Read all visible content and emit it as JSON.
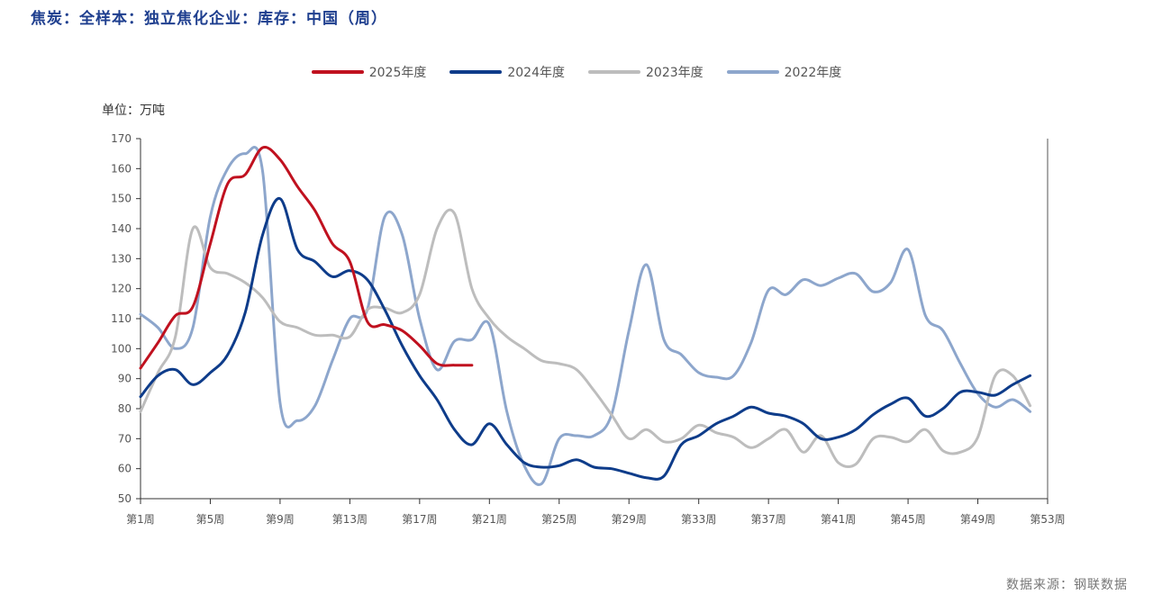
{
  "title": "焦炭：全样本：独立焦化企业：库存：中国（周）",
  "unit_label": "单位：万吨",
  "source_label": "数据来源：钢联数据",
  "chart_data": {
    "type": "line",
    "title": "焦炭：全样本：独立焦化企业：库存：中国（周）",
    "xlabel": "",
    "ylabel": "单位：万吨",
    "xlim": [
      1,
      53
    ],
    "ylim": [
      50,
      170
    ],
    "y_ticks": [
      50,
      60,
      70,
      80,
      90,
      100,
      110,
      120,
      130,
      140,
      150,
      160,
      170
    ],
    "x_ticks": [
      1,
      5,
      9,
      13,
      17,
      21,
      25,
      29,
      33,
      37,
      41,
      45,
      49,
      53
    ],
    "x_tick_labels": [
      "第1周",
      "第5周",
      "第9周",
      "第13周",
      "第17周",
      "第21周",
      "第25周",
      "第29周",
      "第33周",
      "第37周",
      "第41周",
      "第45周",
      "第49周",
      "第53周"
    ],
    "grid": false,
    "legend_position": "top-center",
    "series": [
      {
        "name": "2025年度",
        "color": "#c0111f",
        "x": [
          1,
          2,
          3,
          4,
          5,
          6,
          7,
          8,
          9,
          10,
          11,
          12,
          13,
          14,
          15,
          16,
          17,
          18,
          19,
          20
        ],
        "values": [
          93.5,
          102,
          111,
          114,
          135,
          155,
          158,
          167,
          163,
          154,
          146,
          135,
          129,
          109,
          108,
          106,
          101,
          95,
          94.5,
          94.5
        ]
      },
      {
        "name": "2024年度",
        "color": "#0e3c8a",
        "x": [
          1,
          2,
          3,
          4,
          5,
          6,
          7,
          8,
          9,
          10,
          11,
          12,
          13,
          14,
          15,
          16,
          17,
          18,
          19,
          20,
          21,
          22,
          23,
          24,
          25,
          26,
          27,
          28,
          29,
          30,
          31,
          32,
          33,
          34,
          35,
          36,
          37,
          38,
          39,
          40,
          41,
          42,
          43,
          44,
          45,
          46,
          47,
          48,
          49,
          50,
          51,
          52
        ],
        "values": [
          84,
          91,
          93,
          88,
          92,
          98,
          112,
          138,
          150,
          133,
          129,
          124,
          126,
          123,
          113,
          101,
          91,
          83,
          73,
          68,
          75,
          68,
          62,
          60.5,
          61,
          63,
          60.5,
          60,
          58.5,
          57,
          57.5,
          68,
          71,
          75,
          77.5,
          80.5,
          78.5,
          77.5,
          75,
          70,
          70.5,
          73,
          78,
          81.5,
          83.5,
          77.5,
          80,
          85.5,
          85.5,
          84.5,
          88,
          91
        ]
      },
      {
        "name": "2023年度",
        "color": "#bdbdbd",
        "x": [
          1,
          2,
          3,
          4,
          5,
          6,
          7,
          8,
          9,
          10,
          11,
          12,
          13,
          14,
          15,
          16,
          17,
          18,
          19,
          20,
          21,
          22,
          23,
          24,
          25,
          26,
          27,
          28,
          29,
          30,
          31,
          32,
          33,
          34,
          35,
          36,
          37,
          38,
          39,
          40,
          41,
          42,
          43,
          44,
          45,
          46,
          47,
          48,
          49,
          50,
          51,
          52
        ],
        "values": [
          79,
          92,
          104,
          140,
          127,
          125,
          122,
          117,
          109,
          107,
          104.5,
          104.5,
          104,
          113,
          113.5,
          112,
          118,
          140,
          145,
          120,
          110,
          104,
          100,
          96,
          95,
          93,
          86,
          78,
          70,
          73,
          69,
          70,
          74.5,
          72,
          70.5,
          67,
          70,
          73,
          65.5,
          71,
          62,
          61.5,
          70,
          70.5,
          69,
          73,
          66,
          65.5,
          70.5,
          91,
          91,
          81
        ]
      },
      {
        "name": "2022年度",
        "color": "#8da6cc",
        "x": [
          1,
          2,
          3,
          4,
          5,
          6,
          7,
          8,
          9,
          10,
          11,
          12,
          13,
          14,
          15,
          16,
          17,
          18,
          19,
          20,
          21,
          22,
          23,
          24,
          25,
          26,
          27,
          28,
          29,
          30,
          31,
          32,
          33,
          34,
          35,
          36,
          37,
          38,
          39,
          40,
          41,
          42,
          43,
          44,
          45,
          46,
          47,
          48,
          49,
          50,
          51,
          52
        ],
        "values": [
          111.5,
          107,
          100,
          107,
          144,
          160,
          165,
          159,
          82,
          76,
          81,
          96,
          110,
          113,
          144,
          138,
          110,
          93,
          102.5,
          103,
          108,
          79,
          61,
          55,
          70,
          71,
          71,
          78,
          106,
          128,
          103,
          98,
          92,
          90.5,
          91,
          102,
          119.5,
          118,
          123,
          121,
          123.5,
          125,
          119,
          122,
          133,
          111,
          106,
          95,
          85,
          80.5,
          83,
          79
        ]
      }
    ]
  }
}
